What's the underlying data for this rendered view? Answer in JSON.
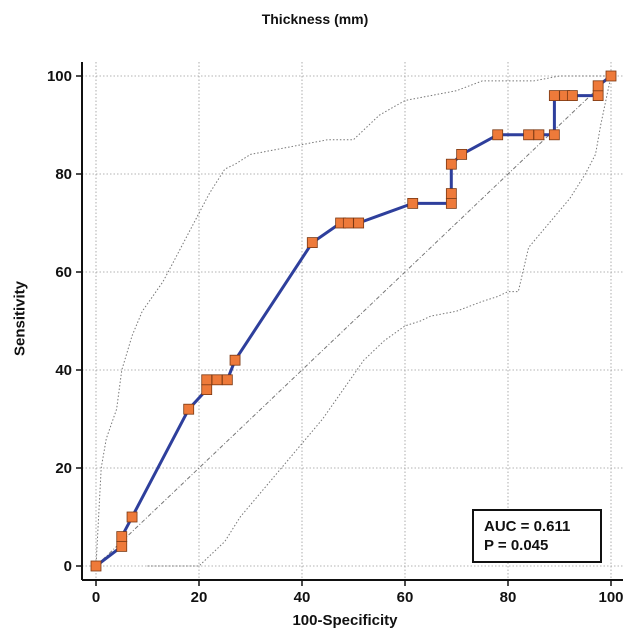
{
  "chart_data": {
    "type": "line",
    "title": "Thickness (mm)",
    "xlabel": "100-Specificity",
    "ylabel": "Sensitivity",
    "xlim": [
      0,
      100
    ],
    "ylim": [
      0,
      100
    ],
    "xticks": [
      0,
      20,
      40,
      60,
      80,
      100
    ],
    "yticks": [
      0,
      20,
      40,
      60,
      80,
      100
    ],
    "grid": true,
    "series": [
      {
        "name": "",
        "color": "#2e3f9c",
        "marker_color": "#ee7a3a",
        "points": [
          [
            0,
            0
          ],
          [
            5,
            4
          ],
          [
            5,
            6
          ],
          [
            7,
            10
          ],
          [
            18,
            32
          ],
          [
            21.5,
            36
          ],
          [
            21.5,
            38
          ],
          [
            23.5,
            38
          ],
          [
            25.5,
            38
          ],
          [
            27,
            42
          ],
          [
            42,
            66
          ],
          [
            47.5,
            70
          ],
          [
            49,
            70
          ],
          [
            51,
            70
          ],
          [
            61.5,
            74
          ],
          [
            69,
            74
          ],
          [
            69,
            76
          ],
          [
            69,
            82
          ],
          [
            71,
            84
          ],
          [
            78,
            88
          ],
          [
            84,
            88
          ],
          [
            86,
            88
          ],
          [
            89,
            88
          ],
          [
            89,
            96
          ],
          [
            91,
            96
          ],
          [
            92.5,
            96
          ],
          [
            97.5,
            96
          ],
          [
            97.5,
            98
          ],
          [
            100,
            100
          ]
        ]
      }
    ],
    "diagonal": [
      [
        0,
        0
      ],
      [
        100,
        100
      ]
    ],
    "ci_upper": [
      [
        0,
        0
      ],
      [
        0.5,
        10
      ],
      [
        1,
        20
      ],
      [
        2,
        26
      ],
      [
        4,
        32
      ],
      [
        5,
        40
      ],
      [
        7,
        47
      ],
      [
        9,
        52
      ],
      [
        13,
        58
      ],
      [
        15,
        62
      ],
      [
        18,
        68
      ],
      [
        20,
        72
      ],
      [
        22,
        76
      ],
      [
        25,
        81
      ],
      [
        27,
        82
      ],
      [
        30,
        84
      ],
      [
        35,
        85
      ],
      [
        40,
        86
      ],
      [
        45,
        87
      ],
      [
        50,
        87
      ],
      [
        55,
        92
      ],
      [
        60,
        95
      ],
      [
        65,
        96
      ],
      [
        70,
        97
      ],
      [
        75,
        99
      ],
      [
        80,
        99
      ],
      [
        85,
        99
      ],
      [
        90,
        100
      ],
      [
        100,
        100
      ]
    ],
    "ci_lower": [
      [
        10,
        0
      ],
      [
        20,
        0
      ],
      [
        22,
        2
      ],
      [
        25,
        5
      ],
      [
        28,
        10
      ],
      [
        32,
        15
      ],
      [
        36,
        20
      ],
      [
        40,
        25
      ],
      [
        44,
        30
      ],
      [
        48,
        36
      ],
      [
        52,
        42
      ],
      [
        56,
        46
      ],
      [
        60,
        49
      ],
      [
        63,
        50
      ],
      [
        65,
        51
      ],
      [
        70,
        52
      ],
      [
        75,
        54
      ],
      [
        78,
        55
      ],
      [
        80,
        56
      ],
      [
        82,
        56
      ],
      [
        84,
        65
      ],
      [
        88,
        70
      ],
      [
        92,
        75
      ],
      [
        95,
        80
      ],
      [
        97,
        84
      ],
      [
        98,
        90
      ],
      [
        100,
        100
      ]
    ],
    "auc_text": "AUC = 0.611",
    "p_text": "P = 0.045"
  }
}
